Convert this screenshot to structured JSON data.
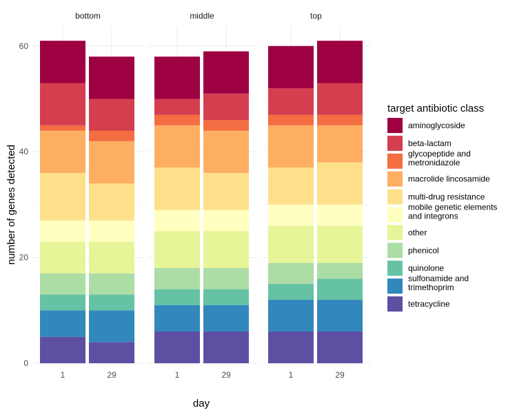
{
  "chart_data": {
    "type": "bar",
    "stacked": true,
    "xlabel": "day",
    "ylabel": "number of genes detected",
    "ylim": [
      0,
      62
    ],
    "yticks": [
      0,
      20,
      40,
      60
    ],
    "grid": true,
    "legend_title": "target antibiotic class",
    "legend_position": "right",
    "categories": [
      "1",
      "29"
    ],
    "classes": [
      {
        "name": "tetracycline",
        "color": "#5E4FA2"
      },
      {
        "name": "sulfonamide and\ntrimethoprim",
        "color": "#3288BD"
      },
      {
        "name": "quinolone",
        "color": "#66C2A5"
      },
      {
        "name": "phenicol",
        "color": "#ABDDA4"
      },
      {
        "name": "other",
        "color": "#E6F598"
      },
      {
        "name": "mobile genetic elements\nand integrons",
        "color": "#FFFFBF"
      },
      {
        "name": "multi-drug resistance",
        "color": "#FEE08B"
      },
      {
        "name": "macrolide lincosamide",
        "color": "#FDAE61"
      },
      {
        "name": "glycopeptide and\nmetronidazole",
        "color": "#F46D43"
      },
      {
        "name": "beta-lactam",
        "color": "#D53E4F"
      },
      {
        "name": "aminoglycoside",
        "color": "#9E0142"
      }
    ],
    "facets": [
      {
        "label": "bottom",
        "bars": [
          {
            "x": "1",
            "values": [
              5,
              5,
              3,
              4,
              6,
              4,
              9,
              8,
              1,
              8,
              8
            ]
          },
          {
            "x": "29",
            "values": [
              4,
              6,
              3,
              4,
              6,
              4,
              7,
              8,
              2,
              6,
              8
            ]
          }
        ]
      },
      {
        "label": "middle",
        "bars": [
          {
            "x": "1",
            "values": [
              6,
              5,
              3,
              4,
              7,
              4,
              8,
              8,
              2,
              3,
              8
            ]
          },
          {
            "x": "29",
            "values": [
              6,
              5,
              3,
              4,
              7,
              4,
              7,
              8,
              2,
              5,
              8
            ]
          }
        ]
      },
      {
        "label": "top",
        "bars": [
          {
            "x": "1",
            "values": [
              6,
              6,
              3,
              4,
              7,
              4,
              7,
              8,
              2,
              5,
              8
            ]
          },
          {
            "x": "29",
            "values": [
              6,
              6,
              4,
              3,
              7,
              4,
              8,
              7,
              2,
              6,
              8
            ]
          }
        ]
      }
    ]
  }
}
